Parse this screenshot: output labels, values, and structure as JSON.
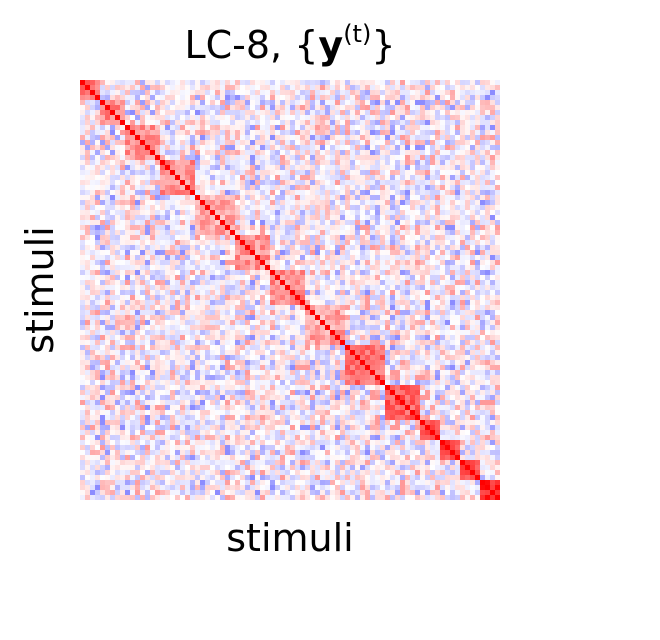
{
  "chart_data": {
    "type": "heatmap",
    "title": {
      "prefix": "LC-8, {",
      "bold_symbol": "y",
      "superscript": "(t)",
      "suffix": "}"
    },
    "xlabel": "stimuli",
    "ylabel": "stimuli",
    "colormap": "bwr",
    "color_low": "#0000ff",
    "color_mid": "#ffffff",
    "color_high": "#ff0000",
    "vlim": [
      -1,
      1
    ],
    "diagonal_value": 1,
    "n_stimuli": 84,
    "blocks": [
      {
        "start": 0,
        "end": 3,
        "value": 0.55
      },
      {
        "start": 4,
        "end": 8,
        "value": 0.45
      },
      {
        "start": 9,
        "end": 15,
        "value": 0.4
      },
      {
        "start": 16,
        "end": 22,
        "value": 0.45
      },
      {
        "start": 23,
        "end": 30,
        "value": 0.35
      },
      {
        "start": 31,
        "end": 37,
        "value": 0.4
      },
      {
        "start": 38,
        "end": 44,
        "value": 0.45
      },
      {
        "start": 45,
        "end": 52,
        "value": 0.35
      },
      {
        "start": 53,
        "end": 60,
        "value": 0.55
      },
      {
        "start": 61,
        "end": 67,
        "value": 0.6
      },
      {
        "start": 68,
        "end": 71,
        "value": 0.65
      },
      {
        "start": 72,
        "end": 75,
        "value": 0.7
      },
      {
        "start": 76,
        "end": 79,
        "value": 0.75
      },
      {
        "start": 80,
        "end": 83,
        "value": 0.8
      }
    ],
    "background_range": [
      -0.45,
      0.4
    ]
  }
}
